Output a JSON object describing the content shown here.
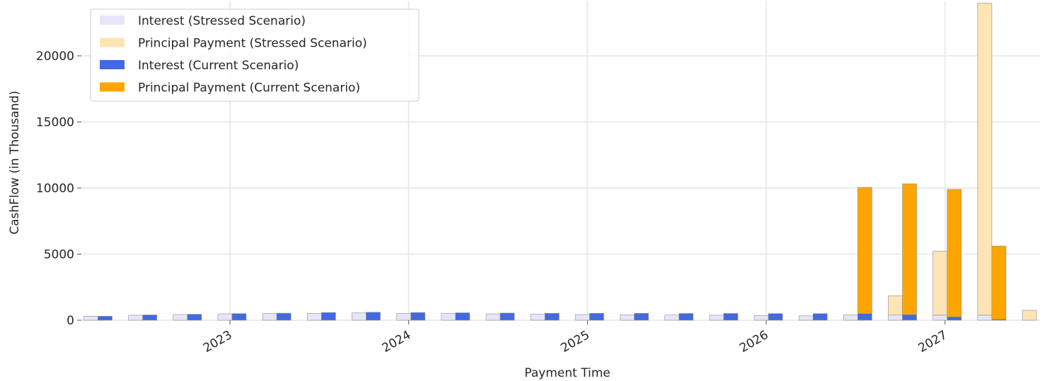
{
  "chart_data": {
    "type": "bar",
    "subtype": "stacked-grouped",
    "title": "",
    "xlabel": "Payment Time",
    "ylabel": "CashFlow (in Thousand)",
    "ylim": [
      0,
      24000
    ],
    "y_ticks": [
      0,
      5000,
      10000,
      15000,
      20000
    ],
    "x_tick_labels": [
      "2023",
      "2024",
      "2025",
      "2026",
      "2027"
    ],
    "grid": true,
    "legend_position": "top-left",
    "legend": [
      {
        "label": "Interest (Stressed Scenario)",
        "color": "#E6E6FA"
      },
      {
        "label": "Principal Payment (Stressed Scenario)",
        "color": "#FFE4B5"
      },
      {
        "label": "Interest (Current Scenario)",
        "color": "#4169E1"
      },
      {
        "label": "Principal Payment (Current Scenario)",
        "color": "#FFA500"
      }
    ],
    "categories": [
      "2022-04",
      "2022-07",
      "2022-10",
      "2023-01",
      "2023-04",
      "2023-07",
      "2023-10",
      "2024-01",
      "2024-04",
      "2024-07",
      "2024-10",
      "2025-01",
      "2025-04",
      "2025-07",
      "2025-10",
      "2026-01",
      "2026-04",
      "2026-07",
      "2026-10",
      "2027-01",
      "2027-04",
      "2027-07"
    ],
    "series": [
      {
        "name": "Interest (Stressed Scenario)",
        "group": "Stressed",
        "values": [
          300,
          380,
          430,
          480,
          500,
          520,
          550,
          520,
          500,
          480,
          460,
          430,
          410,
          390,
          380,
          360,
          330,
          400,
          390,
          380,
          380,
          0
        ]
      },
      {
        "name": "Principal Payment (Stressed Scenario)",
        "group": "Stressed",
        "values": [
          0,
          0,
          0,
          0,
          0,
          0,
          0,
          0,
          0,
          0,
          0,
          0,
          0,
          0,
          0,
          0,
          0,
          0,
          1450,
          4850,
          23600,
          750
        ]
      },
      {
        "name": "Interest (Current Scenario)",
        "group": "Current",
        "values": [
          300,
          400,
          450,
          500,
          530,
          580,
          600,
          580,
          560,
          540,
          520,
          520,
          520,
          510,
          510,
          500,
          500,
          500,
          420,
          250,
          60,
          null
        ]
      },
      {
        "name": "Principal Payment (Current Scenario)",
        "group": "Current",
        "values": [
          0,
          0,
          0,
          0,
          0,
          0,
          0,
          0,
          0,
          0,
          0,
          0,
          0,
          0,
          0,
          0,
          0,
          9550,
          9900,
          9650,
          5550,
          null
        ]
      }
    ]
  }
}
